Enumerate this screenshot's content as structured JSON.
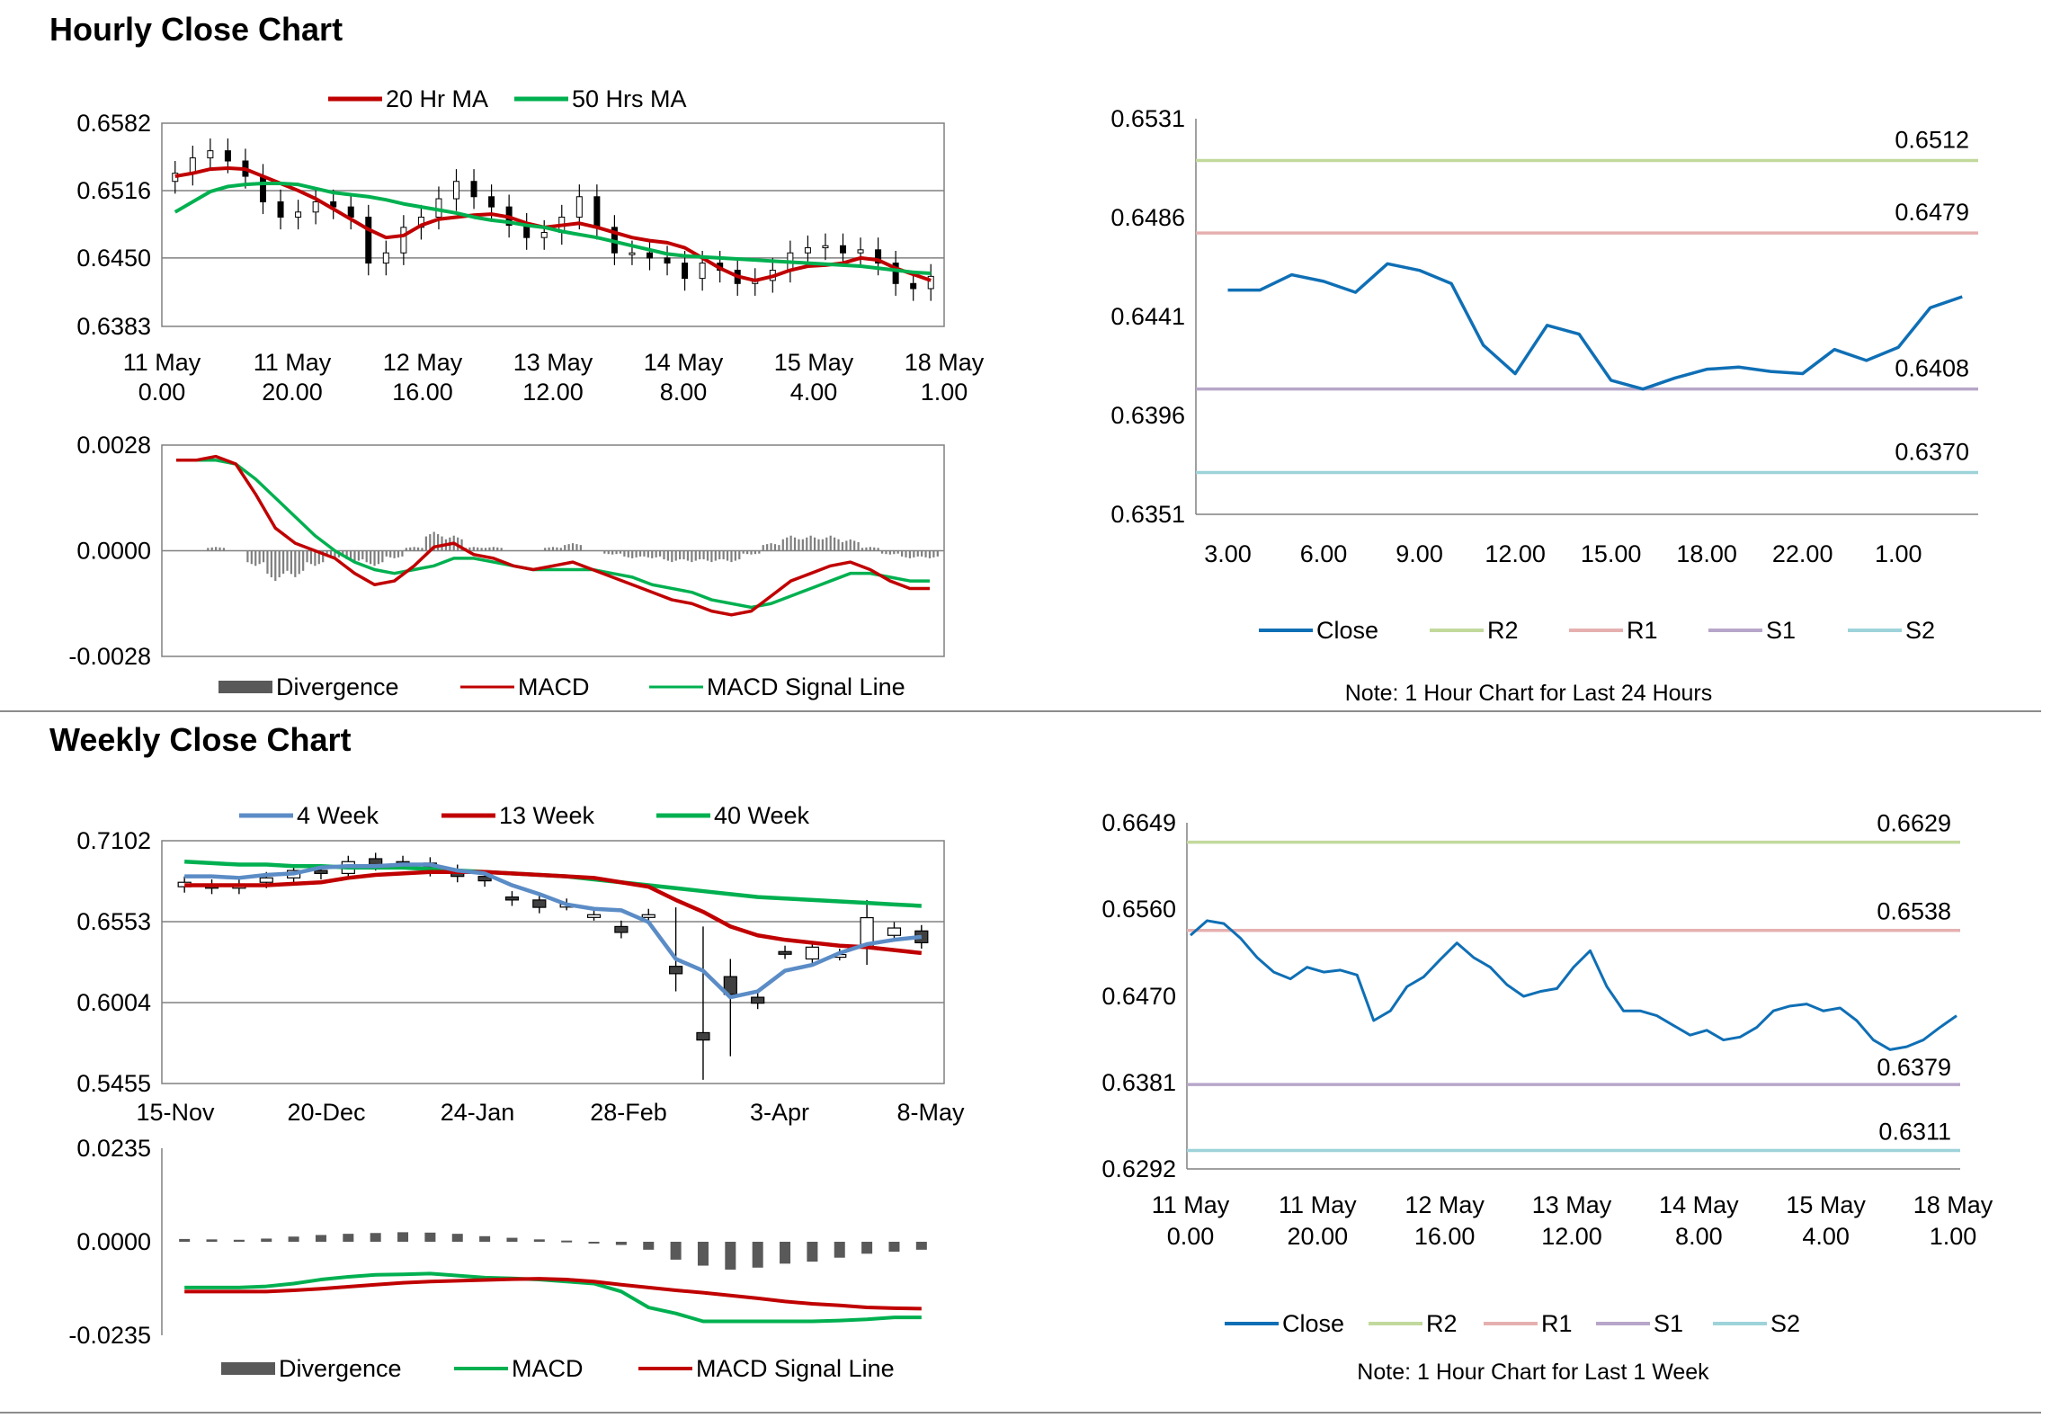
{
  "sections": {
    "hourly_title": "Hourly Close Chart",
    "weekly_title": "Weekly Close Chart"
  },
  "colors": {
    "red": "#c00000",
    "green": "#00b050",
    "blue": "#5b8cc6",
    "close_blue": "#0f6fb5",
    "r2": "#c2d99c",
    "r1": "#e6b0b0",
    "s1": "#b7a6c9",
    "s2": "#9dd3d9",
    "divergence": "#7f7f7f",
    "grid": "#808080",
    "axis": "#808080"
  },
  "chart_data": [
    {
      "id": "hourly_price",
      "type": "candlestick",
      "legend": [
        "20 Hr MA",
        "50 Hrs MA"
      ],
      "y_ticks": [
        "0.6582",
        "0.6516",
        "0.6450",
        "0.6383"
      ],
      "ylim": [
        0.6383,
        0.6582
      ],
      "x_ticks": [
        [
          "11 May",
          "0.00"
        ],
        [
          "11 May",
          "20.00"
        ],
        [
          "12 May",
          "16.00"
        ],
        [
          "13 May",
          "12.00"
        ],
        [
          "14 May",
          "8.00"
        ],
        [
          "15 May",
          "4.00"
        ],
        [
          "18 May",
          "1.00"
        ]
      ],
      "ma20": [
        0.653,
        0.6533,
        0.6537,
        0.6538,
        0.6537,
        0.653,
        0.6523,
        0.6516,
        0.6508,
        0.6498,
        0.6488,
        0.6478,
        0.647,
        0.6472,
        0.6482,
        0.6488,
        0.649,
        0.6492,
        0.6493,
        0.649,
        0.6484,
        0.648,
        0.6482,
        0.6484,
        0.648,
        0.6475,
        0.647,
        0.6467,
        0.6465,
        0.646,
        0.645,
        0.644,
        0.6432,
        0.6428,
        0.6432,
        0.6438,
        0.6442,
        0.6443,
        0.6445,
        0.645,
        0.6448,
        0.644,
        0.6434,
        0.6428
      ],
      "ma50": [
        0.6495,
        0.6505,
        0.6515,
        0.652,
        0.6522,
        0.6523,
        0.6523,
        0.6522,
        0.6518,
        0.6514,
        0.6512,
        0.651,
        0.6507,
        0.6503,
        0.65,
        0.6497,
        0.6494,
        0.649,
        0.6487,
        0.6485,
        0.6482,
        0.648,
        0.6476,
        0.6473,
        0.647,
        0.6466,
        0.6462,
        0.6458,
        0.6454,
        0.6452,
        0.6451,
        0.645,
        0.6449,
        0.6448,
        0.6447,
        0.6446,
        0.6445,
        0.6444,
        0.6443,
        0.6442,
        0.644,
        0.6438,
        0.6436,
        0.6435
      ],
      "closes": [
        0.6533,
        0.6548,
        0.6555,
        0.6545,
        0.653,
        0.6505,
        0.649,
        0.6495,
        0.6505,
        0.65,
        0.649,
        0.6445,
        0.6455,
        0.648,
        0.649,
        0.6508,
        0.6525,
        0.651,
        0.65,
        0.6482,
        0.647,
        0.6475,
        0.649,
        0.651,
        0.648,
        0.6455,
        0.6455,
        0.645,
        0.6445,
        0.643,
        0.6445,
        0.6438,
        0.6425,
        0.6428,
        0.6438,
        0.6455,
        0.646,
        0.6462,
        0.6455,
        0.6458,
        0.6445,
        0.6425,
        0.642,
        0.6432
      ]
    },
    {
      "id": "hourly_macd",
      "type": "line",
      "legend": [
        "Divergence",
        "MACD",
        "MACD Signal Line"
      ],
      "y_ticks": [
        "0.0028",
        "0.0000",
        "-0.0028"
      ],
      "ylim": [
        -0.0028,
        0.0028
      ],
      "macd": [
        0.0024,
        0.0024,
        0.0025,
        0.0023,
        0.0015,
        0.0006,
        0.0002,
        0.0,
        -0.0002,
        -0.0006,
        -0.0009,
        -0.0008,
        -0.0004,
        0.0001,
        0.0002,
        -0.0001,
        -0.0002,
        -0.0004,
        -0.0005,
        -0.0004,
        -0.0003,
        -0.0005,
        -0.0007,
        -0.0009,
        -0.0011,
        -0.0013,
        -0.0014,
        -0.0016,
        -0.0017,
        -0.0016,
        -0.0012,
        -0.0008,
        -0.0006,
        -0.0004,
        -0.0003,
        -0.0005,
        -0.0008,
        -0.001,
        -0.001
      ],
      "signal": [
        0.0024,
        0.0024,
        0.0024,
        0.0023,
        0.0019,
        0.0014,
        0.0009,
        0.0004,
        0.0,
        -0.0003,
        -0.0005,
        -0.0006,
        -0.0005,
        -0.0004,
        -0.0002,
        -0.0002,
        -0.0003,
        -0.0004,
        -0.0005,
        -0.0005,
        -0.0005,
        -0.0005,
        -0.0006,
        -0.0007,
        -0.0009,
        -0.001,
        -0.0011,
        -0.0013,
        -0.0014,
        -0.0015,
        -0.0014,
        -0.0012,
        -0.001,
        -0.0008,
        -0.0006,
        -0.0006,
        -0.0007,
        -0.0008,
        -0.0008
      ],
      "divergence": [
        0.0,
        0.0,
        0.0001,
        0.0,
        -0.0004,
        -0.0008,
        -0.0007,
        -0.0004,
        -0.0002,
        -0.0003,
        -0.0004,
        -0.0002,
        0.0001,
        0.0005,
        0.0004,
        0.0001,
        0.0001,
        0.0,
        0.0,
        0.0001,
        0.0002,
        0.0,
        -0.0001,
        -0.0002,
        -0.0002,
        -0.0003,
        -0.0003,
        -0.0003,
        -0.0003,
        -0.0001,
        0.0002,
        0.0004,
        0.0004,
        0.0004,
        0.0003,
        0.0001,
        -0.0001,
        -0.0002,
        -0.0002
      ]
    },
    {
      "id": "hourly_pivot",
      "type": "line",
      "legend": [
        "Close",
        "R2",
        "R1",
        "S1",
        "S2"
      ],
      "y_ticks": [
        "0.6531",
        "0.6486",
        "0.6441",
        "0.6396",
        "0.6351"
      ],
      "ylim": [
        0.6351,
        0.6531
      ],
      "x_ticks": [
        "3.00",
        "6.00",
        "9.00",
        "12.00",
        "15.00",
        "18.00",
        "22.00",
        "1.00"
      ],
      "levels": {
        "R2": "0.6512",
        "R1": "0.6479",
        "S1": "0.6408",
        "S2": "0.6370"
      },
      "level_values": [
        0.6512,
        0.6479,
        0.6408,
        0.637
      ],
      "close": [
        0.6453,
        0.6453,
        0.646,
        0.6457,
        0.6452,
        0.6465,
        0.6462,
        0.6456,
        0.6428,
        0.6415,
        0.6437,
        0.6433,
        0.6412,
        0.6408,
        0.6413,
        0.6417,
        0.6418,
        0.6416,
        0.6415,
        0.6426,
        0.6421,
        0.6427,
        0.6445,
        0.645
      ],
      "note": "Note: 1 Hour Chart for Last 24 Hours"
    },
    {
      "id": "weekly_price",
      "type": "candlestick",
      "legend": [
        "4 Week",
        "13 Week",
        "40 Week"
      ],
      "y_ticks": [
        "0.7102",
        "0.6553",
        "0.6004",
        "0.5455"
      ],
      "ylim": [
        0.5455,
        0.7102
      ],
      "x_ticks": [
        "15-Nov",
        "20-Dec",
        "24-Jan",
        "28-Feb",
        "3-Apr",
        "8-May"
      ],
      "open": [
        0.679,
        0.68,
        0.678,
        0.682,
        0.685,
        0.69,
        0.688,
        0.698,
        0.696,
        0.695,
        0.69,
        0.686,
        0.672,
        0.67,
        0.667,
        0.66,
        0.652,
        0.66,
        0.625,
        0.58,
        0.618,
        0.604,
        0.635,
        0.63,
        0.633,
        0.638,
        0.646,
        0.649
      ],
      "close": [
        0.682,
        0.678,
        0.68,
        0.685,
        0.69,
        0.688,
        0.696,
        0.694,
        0.695,
        0.69,
        0.686,
        0.683,
        0.67,
        0.665,
        0.667,
        0.66,
        0.648,
        0.66,
        0.62,
        0.575,
        0.606,
        0.6,
        0.634,
        0.638,
        0.633,
        0.658,
        0.651,
        0.641
      ],
      "ma4": [
        0.686,
        0.686,
        0.685,
        0.687,
        0.688,
        0.692,
        0.693,
        0.693,
        0.694,
        0.694,
        0.69,
        0.688,
        0.68,
        0.674,
        0.667,
        0.664,
        0.663,
        0.655,
        0.63,
        0.622,
        0.604,
        0.608,
        0.622,
        0.626,
        0.634,
        0.64,
        0.643,
        0.645
      ],
      "ma13": [
        0.68,
        0.68,
        0.68,
        0.68,
        0.681,
        0.682,
        0.685,
        0.687,
        0.688,
        0.689,
        0.689,
        0.689,
        0.688,
        0.687,
        0.686,
        0.685,
        0.682,
        0.679,
        0.67,
        0.662,
        0.652,
        0.646,
        0.643,
        0.641,
        0.639,
        0.638,
        0.636,
        0.634
      ],
      "ma40": [
        0.696,
        0.695,
        0.694,
        0.694,
        0.693,
        0.693,
        0.692,
        0.692,
        0.692,
        0.691,
        0.69,
        0.689,
        0.688,
        0.687,
        0.686,
        0.684,
        0.682,
        0.68,
        0.678,
        0.676,
        0.674,
        0.672,
        0.671,
        0.67,
        0.669,
        0.668,
        0.667,
        0.666
      ]
    },
    {
      "id": "weekly_macd",
      "type": "line",
      "legend": [
        "Divergence",
        "MACD",
        "MACD Signal Line"
      ],
      "y_ticks": [
        "0.0235",
        "0.0000",
        "-0.0235"
      ],
      "ylim": [
        -0.0235,
        0.0235
      ],
      "divergence": [
        0.0007,
        0.0006,
        0.0005,
        0.0008,
        0.0013,
        0.0017,
        0.002,
        0.0022,
        0.0024,
        0.0023,
        0.002,
        0.0014,
        0.001,
        0.0006,
        0.0003,
        -0.0002,
        -0.0008,
        -0.002,
        -0.0045,
        -0.006,
        -0.007,
        -0.0065,
        -0.0055,
        -0.005,
        -0.004,
        -0.003,
        -0.0025,
        -0.002
      ],
      "macd": [
        -0.0115,
        -0.0115,
        -0.0115,
        -0.0112,
        -0.0105,
        -0.0095,
        -0.0088,
        -0.0083,
        -0.0082,
        -0.008,
        -0.0085,
        -0.009,
        -0.0092,
        -0.0095,
        -0.01,
        -0.0105,
        -0.0125,
        -0.0165,
        -0.018,
        -0.02,
        -0.02,
        -0.02,
        -0.02,
        -0.02,
        -0.0198,
        -0.0195,
        -0.019,
        -0.019
      ],
      "signal": [
        -0.0125,
        -0.0125,
        -0.0125,
        -0.0125,
        -0.0122,
        -0.0118,
        -0.0113,
        -0.0108,
        -0.0103,
        -0.01,
        -0.0098,
        -0.0096,
        -0.0094,
        -0.0093,
        -0.0095,
        -0.01,
        -0.0108,
        -0.0115,
        -0.0122,
        -0.0128,
        -0.0135,
        -0.0142,
        -0.015,
        -0.0156,
        -0.016,
        -0.0165,
        -0.0167,
        -0.0168
      ]
    },
    {
      "id": "weekly_pivot",
      "type": "line",
      "legend": [
        "Close",
        "R2",
        "R1",
        "S1",
        "S2"
      ],
      "y_ticks": [
        "0.6649",
        "0.6560",
        "0.6470",
        "0.6381",
        "0.6292"
      ],
      "ylim": [
        0.6292,
        0.6649
      ],
      "x_ticks": [
        [
          "11 May",
          "0.00"
        ],
        [
          "11 May",
          "20.00"
        ],
        [
          "12 May",
          "16.00"
        ],
        [
          "13 May",
          "12.00"
        ],
        [
          "14 May",
          "8.00"
        ],
        [
          "15 May",
          "4.00"
        ],
        [
          "18 May",
          "1.00"
        ]
      ],
      "levels": {
        "R2": "0.6629",
        "R1": "0.6538",
        "S1": "0.6379",
        "S2": "0.6311"
      },
      "level_values": [
        0.6629,
        0.6538,
        0.6379,
        0.6311
      ],
      "close": [
        0.6533,
        0.6548,
        0.6545,
        0.653,
        0.651,
        0.6495,
        0.6488,
        0.65,
        0.6495,
        0.6497,
        0.6492,
        0.6445,
        0.6455,
        0.648,
        0.649,
        0.6508,
        0.6525,
        0.651,
        0.65,
        0.6482,
        0.647,
        0.6475,
        0.6478,
        0.65,
        0.6517,
        0.648,
        0.6455,
        0.6455,
        0.645,
        0.644,
        0.643,
        0.6435,
        0.6425,
        0.6428,
        0.6438,
        0.6455,
        0.646,
        0.6462,
        0.6455,
        0.6458,
        0.6445,
        0.6425,
        0.6415,
        0.6418,
        0.6425,
        0.6438,
        0.645
      ],
      "note": "Note: 1 Hour Chart for Last 1 Week"
    }
  ]
}
